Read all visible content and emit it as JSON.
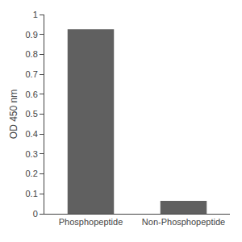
{
  "chart_data": {
    "type": "bar",
    "categories": [
      "Phosphopeptide",
      "Non-Phosphopeptide"
    ],
    "values": [
      0.926,
      0.065
    ],
    "color": "#606060",
    "ylabel": "OD 450 nm",
    "ylim": [
      0,
      1.0
    ],
    "yticks": [
      0,
      0.1,
      0.2,
      0.3,
      0.4,
      0.5,
      0.6,
      0.7,
      0.8,
      0.9,
      1
    ],
    "grid": false
  }
}
